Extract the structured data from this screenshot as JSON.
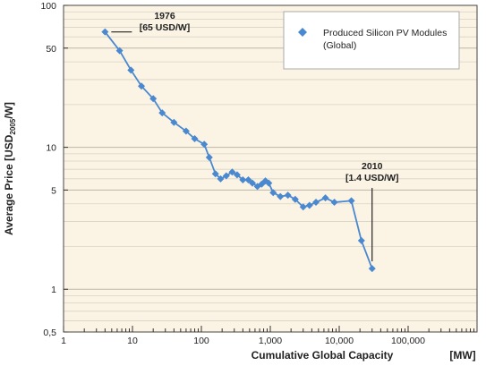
{
  "chart_data": {
    "type": "line",
    "xscale": "log",
    "yscale": "log",
    "xlim": [
      1,
      400000
    ],
    "ylim": [
      0.5,
      100
    ],
    "xlabel": "Cumulative Global Capacity [MW]",
    "ylabel_parts": {
      "pre": "Average Price [USD",
      "sub": "2005",
      "post": "/W]"
    },
    "xticks": [
      {
        "value": 1,
        "label": "1"
      },
      {
        "value": 10,
        "label": "10"
      },
      {
        "value": 100,
        "label": "100"
      },
      {
        "value": 1000,
        "label": "1,000"
      },
      {
        "value": 10000,
        "label": "10,000"
      },
      {
        "value": 100000,
        "label": "100,000"
      },
      {
        "value": 1000000,
        "label": "[MW]"
      }
    ],
    "yticks": [
      {
        "value": 100,
        "label": "100"
      },
      {
        "value": 50,
        "label": "50"
      },
      {
        "value": 10,
        "label": "10"
      },
      {
        "value": 5,
        "label": "5"
      },
      {
        "value": 1,
        "label": "1"
      },
      {
        "value": 0.5,
        "label": "0,5"
      }
    ],
    "grid": true,
    "legend_position": "top-right",
    "series": [
      {
        "name": "Produced Silicon PV Modules (Global)",
        "legend_lines": [
          "Produced Silicon PV Modules",
          "(Global)"
        ],
        "color": "#4a88d0",
        "marker": "diamond",
        "points": [
          [
            4,
            65
          ],
          [
            6.5,
            48
          ],
          [
            9.5,
            35
          ],
          [
            13.5,
            27
          ],
          [
            20,
            22
          ],
          [
            27,
            17.5
          ],
          [
            40,
            15
          ],
          [
            60,
            13
          ],
          [
            80,
            11.5
          ],
          [
            110,
            10.5
          ],
          [
            130,
            8.5
          ],
          [
            160,
            6.5
          ],
          [
            190,
            6
          ],
          [
            230,
            6.3
          ],
          [
            280,
            6.7
          ],
          [
            330,
            6.4
          ],
          [
            400,
            5.9
          ],
          [
            480,
            5.9
          ],
          [
            550,
            5.6
          ],
          [
            650,
            5.3
          ],
          [
            750,
            5.5
          ],
          [
            850,
            5.8
          ],
          [
            950,
            5.6
          ],
          [
            1100,
            4.8
          ],
          [
            1400,
            4.5
          ],
          [
            1800,
            4.6
          ],
          [
            2300,
            4.3
          ],
          [
            3000,
            3.8
          ],
          [
            3700,
            3.9
          ],
          [
            4600,
            4.1
          ],
          [
            6300,
            4.4
          ],
          [
            8500,
            4.1
          ],
          [
            15000,
            4.2
          ],
          [
            21000,
            2.2
          ],
          [
            30000,
            1.4
          ]
        ]
      }
    ],
    "annotations": [
      {
        "lines": [
          "1976",
          "[65 USD/W]"
        ],
        "x": 4,
        "y": 65
      },
      {
        "lines": [
          "2010",
          "[1.4 USD/W]"
        ],
        "x": 30000,
        "y": 1.4
      }
    ]
  }
}
